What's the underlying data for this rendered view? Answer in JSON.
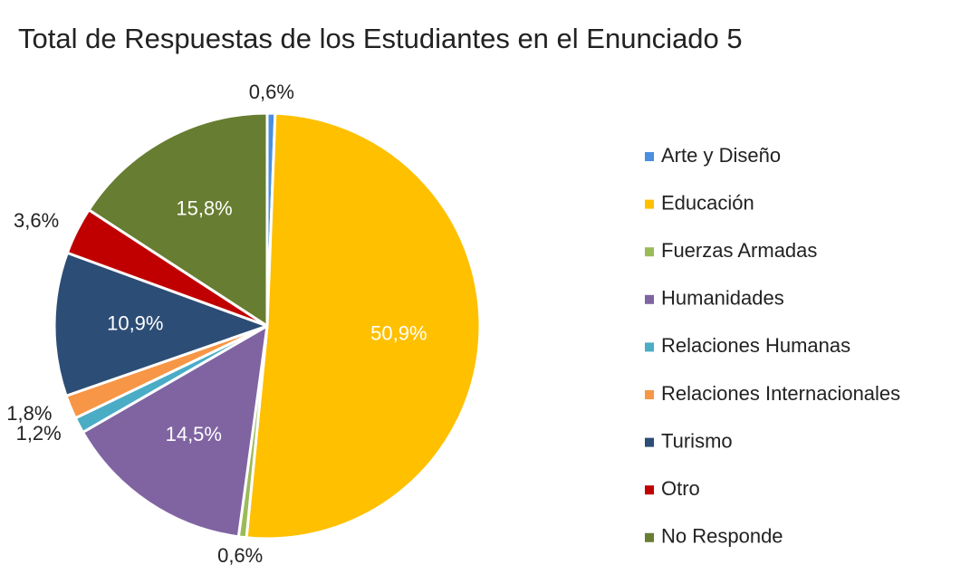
{
  "chart_data": {
    "type": "pie",
    "title": "Total de Respuestas de los Estudiantes en el Enunciado 5",
    "categories": [
      "Arte y Diseño",
      "Educación",
      "Fuerzas Armadas",
      "Humanidades",
      "Relaciones Humanas",
      "Relaciones Internacionales",
      "Turismo",
      "Otro",
      "No Responde"
    ],
    "values": [
      0.6,
      50.9,
      0.6,
      14.5,
      1.2,
      1.8,
      10.9,
      3.6,
      15.8
    ],
    "value_labels": [
      "0,6%",
      "50,9%",
      "0,6%",
      "14,5%",
      "1,2%",
      "1,8%",
      "10,9%",
      "3,6%",
      "15,8%"
    ],
    "colors": [
      "#4a8fe0",
      "#ffc000",
      "#9bbb59",
      "#8064a2",
      "#4bacc6",
      "#f79646",
      "#2c4d75",
      "#c00000",
      "#677d31"
    ],
    "label_inside": [
      false,
      true,
      false,
      true,
      false,
      false,
      true,
      false,
      true
    ],
    "legend": "right"
  }
}
